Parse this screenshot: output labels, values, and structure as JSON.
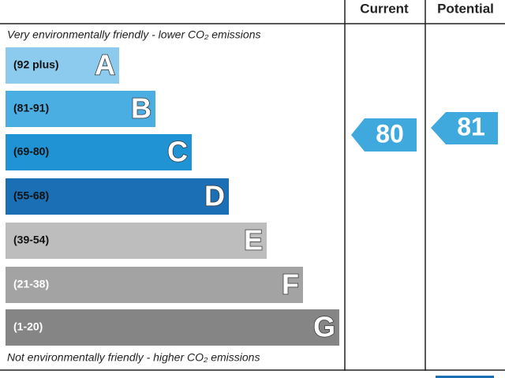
{
  "header": {
    "current": "Current",
    "potential": "Potential"
  },
  "top_note": "Very environmentally friendly - lower CO₂ emissions",
  "bottom_note": "Not environmentally friendly - higher CO₂ emissions",
  "bands": [
    {
      "range": "(92 plus)",
      "letter": "A"
    },
    {
      "range": "(81-91)",
      "letter": "B"
    },
    {
      "range": "(69-80)",
      "letter": "C"
    },
    {
      "range": "(55-68)",
      "letter": "D"
    },
    {
      "range": "(39-54)",
      "letter": "E"
    },
    {
      "range": "(21-38)",
      "letter": "F"
    },
    {
      "range": "(1-20)",
      "letter": "G"
    }
  ],
  "current_rating": "80",
  "potential_rating": "81"
}
